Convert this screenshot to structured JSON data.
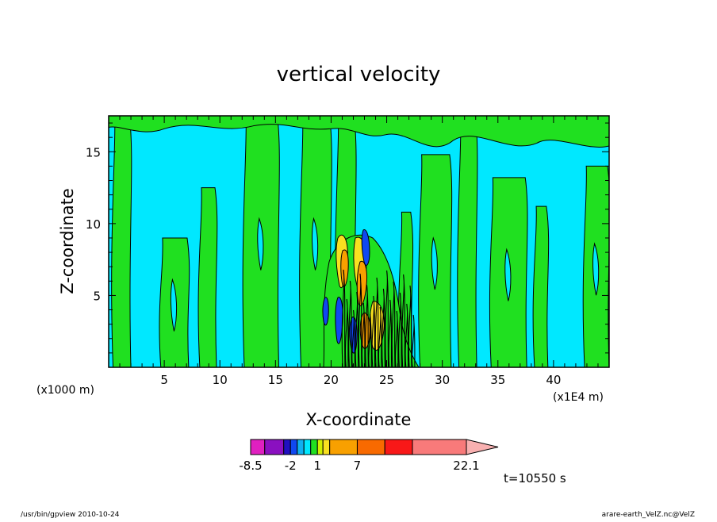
{
  "chart_data": {
    "type": "heatmap",
    "title": "vertical velocity",
    "xlabel": "X-coordinate",
    "ylabel": "Z-coordinate",
    "x_unit_left": "(x1000 m)",
    "x_unit_right": "(x1E4 m)",
    "xlim": [
      0,
      45
    ],
    "ylim": [
      0,
      17.5
    ],
    "x_ticks": [
      5,
      10,
      15,
      20,
      25,
      30,
      35,
      40
    ],
    "y_ticks": [
      5,
      10,
      15
    ],
    "time_label": "t=10550 s",
    "colorbar": {
      "tick_labels": [
        {
          "value": -8.5,
          "label": "-8.5"
        },
        {
          "value": -2,
          "label": "-2"
        },
        {
          "value": 1,
          "label": "1"
        },
        {
          "value": 7,
          "label": "7"
        },
        {
          "value": 22.1,
          "label": "22.1"
        }
      ],
      "colors": [
        "#e020c0",
        "#8a10c0",
        "#2010c0",
        "#1048f0",
        "#10b0f0",
        "#00e8ff",
        "#20e020",
        "#d0f000",
        "#f8e020",
        "#f8a000",
        "#f86a00",
        "#f81818",
        "#f87a7a",
        "#f8b0b0"
      ],
      "relative_widths": [
        2.3,
        3.1,
        1.1,
        1.1,
        1.1,
        1.1,
        1.1,
        0.9,
        1.1,
        4.5,
        4.5,
        4.5,
        8.8
      ]
    },
    "field": {
      "background_color": "#00e8ff",
      "dominant_colors": [
        "#00e8ff",
        "#20e020",
        "#f8e020",
        "#f8a000",
        "#1048f0",
        "#000000"
      ]
    }
  },
  "footer": {
    "left": "/usr/bin/gpview   2010-10-24",
    "right": "arare-earth_VelZ.nc@VelZ"
  }
}
